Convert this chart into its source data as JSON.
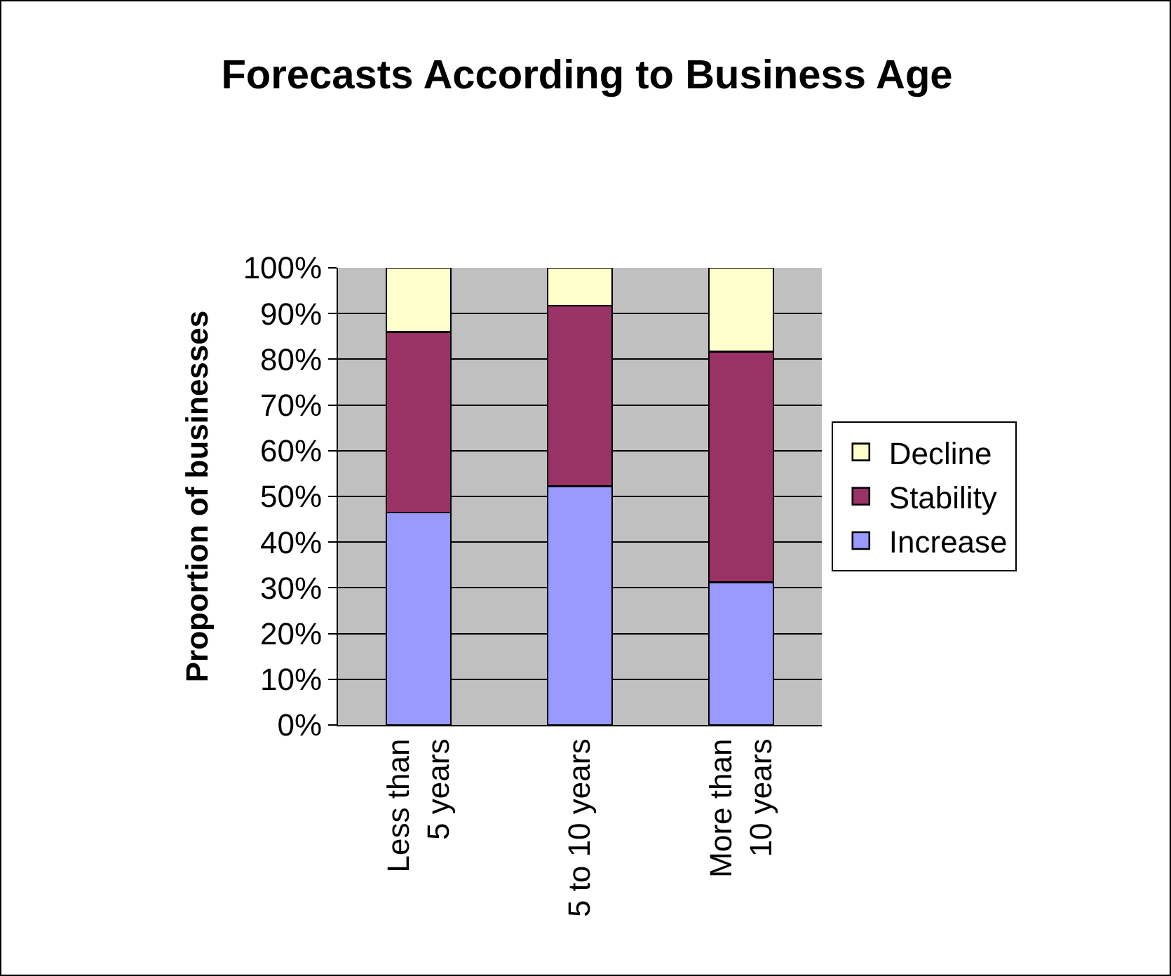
{
  "chart_data": {
    "type": "bar",
    "title": "Forecasts According to Business Age",
    "ylabel": "Proportion of businesses",
    "categories": [
      "Less than\n5 years",
      "5 to 10 years",
      "More than\n10 years"
    ],
    "stacked": true,
    "series": [
      {
        "name": "Increase",
        "color": "#9999ff",
        "values": [
          46.5,
          52.2,
          31.2
        ]
      },
      {
        "name": "Stability",
        "color": "#993366",
        "values": [
          39.5,
          39.5,
          50.5
        ]
      },
      {
        "name": "Decline",
        "color": "#ffffcc",
        "values": [
          14,
          8.3,
          18.3
        ]
      }
    ],
    "ylim": [
      0,
      100
    ],
    "yticks": [
      {
        "value": 0,
        "label": "0%"
      },
      {
        "value": 10,
        "label": "10%"
      },
      {
        "value": 20,
        "label": "20%"
      },
      {
        "value": 30,
        "label": "30%"
      },
      {
        "value": 40,
        "label": "40%"
      },
      {
        "value": 50,
        "label": "50%"
      },
      {
        "value": 60,
        "label": "60%"
      },
      {
        "value": 70,
        "label": "70%"
      },
      {
        "value": 80,
        "label": "80%"
      },
      {
        "value": 90,
        "label": "90%"
      },
      {
        "value": 100,
        "label": "100%"
      }
    ],
    "grid": "y",
    "legend": "right"
  }
}
